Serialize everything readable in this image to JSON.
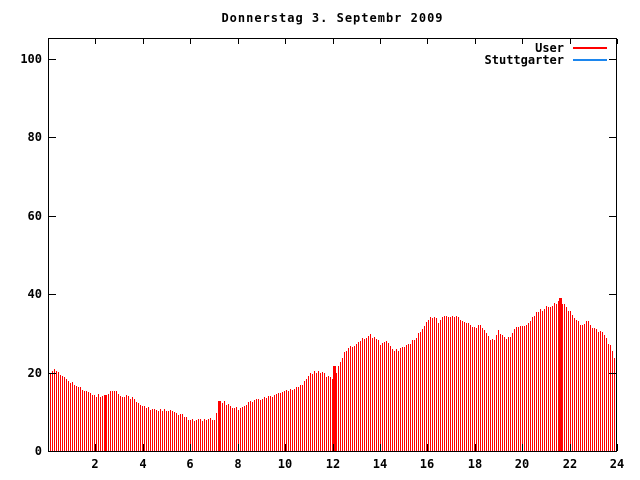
{
  "title_text": "Donnerstag 3. Septembr 2009",
  "colors": {
    "user_series": "#ff0000",
    "stuttgarter_series": "#1c86ee",
    "axis": "#000000",
    "background": "#ffffff"
  },
  "legend": [
    {
      "label": "User",
      "color": "#ff0000"
    },
    {
      "label": "Stuttgarter",
      "color": "#1c86ee"
    }
  ],
  "chart_data": {
    "type": "bar",
    "style": "impulses",
    "title": "Donnerstag 3. Septembr 2009",
    "xlabel": "",
    "ylabel": "",
    "xlim": [
      0,
      24
    ],
    "ylim": [
      0,
      105
    ],
    "xticks": [
      2,
      4,
      6,
      8,
      10,
      12,
      14,
      16,
      18,
      20,
      22,
      24
    ],
    "yticks": [
      0,
      20,
      40,
      60,
      80,
      100
    ],
    "grid": false,
    "legend_position": "top-right-inside",
    "x_unit": "hour-of-day",
    "x_start": 0,
    "x_step": 0.25,
    "x_end": 24,
    "series": [
      {
        "name": "User",
        "color": "#ff0000",
        "values": [
          20.3,
          20.6,
          19.5,
          18.6,
          17.4,
          16.2,
          15.4,
          14.7,
          14.2,
          13.9,
          14.4,
          15.6,
          14.5,
          14.1,
          13.6,
          12.3,
          11.3,
          10.9,
          10.7,
          10.4,
          10.2,
          9.9,
          9.3,
          8.7,
          8.1,
          7.9,
          7.8,
          7.8,
          8.2,
          12.5,
          12.1,
          11.2,
          10.8,
          11.7,
          12.6,
          13.0,
          13.2,
          13.8,
          14.2,
          14.8,
          15.4,
          15.9,
          16.4,
          17.4,
          19.5,
          20.2,
          20.0,
          19.3,
          18.6,
          21.5,
          25.4,
          26.3,
          27.6,
          28.6,
          29.6,
          29.2,
          27.3,
          27.9,
          25.8,
          26.0,
          26.5,
          27.4,
          28.9,
          30.9,
          33.3,
          34.4,
          32.6,
          35.1,
          33.9,
          34.4,
          33.1,
          32.2,
          31.5,
          31.9,
          29.6,
          28.0,
          30.9,
          28.7,
          29.4,
          31.9,
          31.5,
          33.0,
          34.8,
          36.0,
          36.6,
          37.0,
          37.9,
          37.7,
          35.5,
          33.4,
          32.2,
          33.3,
          31.4,
          30.4,
          29.3,
          26.1,
          20.5
        ]
      },
      {
        "name": "Stuttgarter",
        "color": "#1c86ee",
        "values": [],
        "note": "listed in legend only; no visible data points in plot"
      }
    ],
    "solid_spikes": [
      {
        "x": 2.4,
        "y": 14.2
      },
      {
        "x": 7.2,
        "y": 12.8
      },
      {
        "x": 12.05,
        "y": 21.8
      },
      {
        "x": 21.6,
        "y": 39.0
      }
    ]
  }
}
